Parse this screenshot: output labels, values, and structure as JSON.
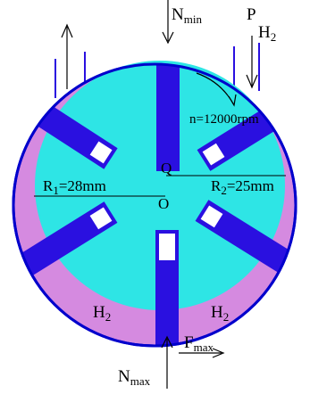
{
  "labels": {
    "n_min": "N",
    "n_min_sub": "min",
    "pressure": "P",
    "pressure_sub": "H",
    "pressure_sub_num": "2",
    "speed": "n=12000rpm",
    "r1": "R",
    "r1_sub": "1",
    "r1_value": "=28mm",
    "r2": "R",
    "r2_sub": "2",
    "r2_value": "=25mm",
    "center_q": "Q",
    "center_o": "O",
    "chamber_left": "H",
    "chamber_left_sub": "2",
    "chamber_right": "H",
    "chamber_right_sub": "2",
    "n_max": "N",
    "n_max_sub": "max",
    "f_max": "F",
    "f_max_sub": "max"
  },
  "colors": {
    "chamber": "#d58ae0",
    "rotor": "#2ee5e5",
    "vane": "#2a10e0",
    "outline": "#0000cc",
    "pipe": "#2a10e0",
    "text": "#000000",
    "line": "#000000"
  }
}
